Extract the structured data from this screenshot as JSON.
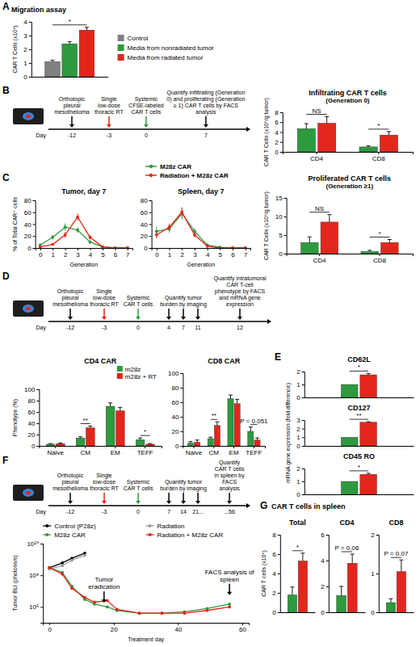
{
  "panel_letters": [
    "A",
    "B",
    "C",
    "D",
    "E",
    "F",
    "G"
  ],
  "legend_key": {
    "items": [
      {
        "name": "M28z CAR",
        "color": "#2e9a3e"
      },
      {
        "name": "Radiation + M28z CAR",
        "color": "#e3261c"
      }
    ]
  },
  "group_title": "CAR T cells in spleen",
  "timelines": [
    {
      "day_label": "Day",
      "events": [
        {
          "days": [
            "-12"
          ],
          "label": "Orthotopic pleural mesothelioma",
          "color": "#000000"
        },
        {
          "days": [
            "-3"
          ],
          "label": "Single low-dose thoracic RT",
          "color": "#e3261c"
        },
        {
          "days": [
            "0"
          ],
          "label": "Systemic CFSE-labeled CAR T cells",
          "color": "#2e9a3e"
        },
        {
          "days": [
            "7"
          ],
          "label": "Quantify infiltrating (Generation 0) and proliferating (Generation ≥ 1) CAR T cells by FACS analysis",
          "color": "#000000"
        }
      ]
    },
    {
      "day_label": "Day",
      "events": [
        {
          "days": [
            "-12"
          ],
          "label": "Orthotopic pleural mesothelioma",
          "color": "#000000"
        },
        {
          "days": [
            "-3"
          ],
          "label": "Single low-dose thoracic RT",
          "color": "#e3261c"
        },
        {
          "days": [
            "0"
          ],
          "label": "Systemic CAR T cells",
          "color": "#2e9a3e"
        },
        {
          "days": [
            "4",
            "7",
            "11"
          ],
          "label": "Quantify tumor burden by imaging",
          "color": "#000000"
        },
        {
          "days": [
            "12"
          ],
          "label": "Quantify intratumoral CAR T-cell phenotype by FACS and mRNA gene expression",
          "color": "#000000"
        }
      ]
    },
    {
      "day_label": "Day",
      "events": [
        {
          "days": [
            "-12"
          ],
          "label": "Orthotopic pleural mesothelioma",
          "color": "#000000"
        },
        {
          "days": [
            "-3"
          ],
          "label": "Single low-dose thoracic RT",
          "color": "#e3261c"
        },
        {
          "days": [
            "0"
          ],
          "label": "Systemic CAR T cells",
          "color": "#2e9a3e"
        },
        {
          "days": [
            "7",
            "14",
            "21..."
          ],
          "label": "Quantify tumor burden by imaging",
          "color": "#000000"
        },
        {
          "days": [
            "...56"
          ],
          "label": "Quantify CAR T cells in spleen by FACS analysis",
          "color": "#000000"
        }
      ]
    }
  ],
  "chart_data": [
    {
      "type": "bar",
      "title": "Migration assay",
      "ylabel": "CAR T Cells (x10⁴)",
      "categories": [
        null
      ],
      "ylim": [
        0,
        4
      ],
      "yticks": [
        0,
        1,
        2,
        3,
        4
      ],
      "legend": "right",
      "series": [
        {
          "name": "Control",
          "color": "#808080",
          "values": [
            1.1
          ],
          "errors": [
            0.1
          ]
        },
        {
          "name": "Media from nonradiated tumor",
          "color": "#2e9a3e",
          "values": [
            2.4
          ],
          "errors": [
            0.15
          ]
        },
        {
          "name": "Media from radiated tumor",
          "color": "#e3261c",
          "values": [
            3.4
          ],
          "errors": [
            0.2
          ]
        }
      ],
      "annotations": [
        {
          "text": "*",
          "category": 0
        }
      ]
    },
    {
      "type": "bar",
      "title": "Infiltrating CAR T cells",
      "subtitle": "(Generation 0)",
      "ylabel": "CAR T Cells (x10⁵/g tumor)",
      "categories": [
        "CD4",
        "CD8"
      ],
      "ylim": [
        0,
        8
      ],
      "yticks": [
        0,
        2,
        4,
        6,
        8
      ],
      "series": [
        {
          "color": "#2e9a3e",
          "values": [
            4.7,
            1.0
          ],
          "errors": [
            1.0,
            0.2
          ]
        },
        {
          "color": "#e3261c",
          "values": [
            5.8,
            3.4
          ],
          "errors": [
            1.3,
            0.7
          ]
        }
      ],
      "annotations": [
        {
          "text": "NS",
          "category": 0
        },
        {
          "text": "*",
          "category": 1
        }
      ]
    },
    {
      "type": "line",
      "title": "Tumor, day 7",
      "xlabel": "Generation",
      "ylabel": "% of Total CAR⁺ cells",
      "x": [
        0,
        1,
        2,
        3,
        4,
        5,
        6,
        7
      ],
      "xlim": [
        -0.4,
        7.4
      ],
      "xticks": [
        0,
        1,
        2,
        3,
        4,
        5,
        6,
        7
      ],
      "ylim": [
        0,
        80
      ],
      "yticks": [
        0,
        20,
        40,
        60,
        80
      ],
      "marker": "circle",
      "series": [
        {
          "color": "#2e9a3e",
          "values": [
            5,
            18,
            35,
            30,
            10,
            2,
            0,
            0
          ],
          "errors": [
            2,
            4,
            6,
            5,
            3,
            1,
            0,
            0
          ]
        },
        {
          "color": "#e3261c",
          "values": [
            2,
            6,
            22,
            52,
            18,
            2,
            0,
            0
          ],
          "errors": [
            1,
            2,
            5,
            6,
            4,
            1,
            0,
            0
          ]
        }
      ]
    },
    {
      "type": "line",
      "title": "Spleen, day 7",
      "xlabel": "Generation",
      "x": [
        0,
        1,
        2,
        3,
        4,
        5,
        6,
        7
      ],
      "xlim": [
        -0.4,
        7.4
      ],
      "xticks": [
        0,
        1,
        2,
        3,
        4,
        5,
        6,
        7
      ],
      "ylim": [
        0,
        80
      ],
      "yticks": [
        0,
        20,
        40,
        60,
        80
      ],
      "marker": "circle",
      "series": [
        {
          "color": "#2e9a3e",
          "values": [
            28,
            32,
            58,
            28,
            5,
            1,
            0,
            0
          ],
          "errors": [
            8,
            6,
            10,
            5,
            2,
            1,
            0,
            0
          ]
        },
        {
          "color": "#e3261c",
          "values": [
            22,
            35,
            60,
            22,
            3,
            0,
            0,
            0
          ],
          "errors": [
            6,
            6,
            8,
            4,
            1,
            0,
            0,
            0
          ]
        }
      ]
    },
    {
      "type": "bar",
      "title": "Proliferated CAR T cells",
      "subtitle": "(Generation ≥1)",
      "ylabel": "CAR T Cells (x10⁵/g tumor)",
      "categories": [
        "CD4",
        "CD8"
      ],
      "ylim": [
        0,
        15
      ],
      "yticks": [
        0,
        5,
        10,
        15
      ],
      "series": [
        {
          "color": "#2e9a3e",
          "values": [
            3,
            0.6
          ],
          "errors": [
            1.5,
            0.3
          ]
        },
        {
          "color": "#e3261c",
          "values": [
            8.5,
            3
          ],
          "errors": [
            2,
            0.8
          ]
        }
      ],
      "annotations": [
        {
          "text": "NS",
          "category": 0
        },
        {
          "text": "*",
          "category": 1
        }
      ]
    },
    {
      "type": "bar",
      "title": "CD4 CAR",
      "ylabel": "Phenotype (%)",
      "categories": [
        "Naive",
        "CM",
        "EM",
        "TEFF"
      ],
      "ylim": [
        0,
        100
      ],
      "yticks": [
        0,
        20,
        40,
        60,
        80,
        100
      ],
      "legend": "top-right",
      "series": [
        {
          "name": "m28z",
          "color": "#2e9a3e",
          "values": [
            3,
            14,
            70,
            11
          ],
          "errors": [
            1,
            2,
            6,
            3
          ]
        },
        {
          "name": "m28z + RT",
          "color": "#e3261c",
          "values": [
            4,
            32,
            62,
            3
          ],
          "errors": [
            1,
            3,
            6,
            1
          ]
        }
      ],
      "annotations": [
        {
          "text": "**",
          "category": 1
        },
        {
          "text": "*",
          "category": 3
        }
      ]
    },
    {
      "type": "bar",
      "title": "CD8 CAR",
      "categories": [
        "Naive",
        "CM",
        "EM",
        "TEFF"
      ],
      "ylim": [
        0,
        100
      ],
      "yticks": [
        0,
        20,
        40,
        60,
        80,
        100
      ],
      "series": [
        {
          "color": "#2e9a3e",
          "values": [
            4,
            10,
            65,
            20
          ],
          "errors": [
            2,
            2,
            5,
            6
          ]
        },
        {
          "color": "#e3261c",
          "values": [
            5,
            28,
            58,
            8
          ],
          "errors": [
            3,
            5,
            6,
            3
          ]
        }
      ],
      "annotations": [
        {
          "text": "**",
          "category": 1
        },
        {
          "text": "P = 0.051",
          "category": 3
        }
      ]
    },
    {
      "type": "bar",
      "title": "CD62L",
      "categories": [
        null
      ],
      "ylim": [
        0,
        2
      ],
      "yticks": [
        0,
        1,
        2
      ],
      "series": [
        {
          "color": "#2e9a3e",
          "values": [
            1
          ]
        },
        {
          "color": "#e3261c",
          "values": [
            1.75
          ],
          "errors": [
            0.1
          ]
        }
      ],
      "annotations": [
        {
          "text": "*",
          "category": 0
        }
      ]
    },
    {
      "type": "bar",
      "title": "CD127",
      "ylabel": "mRNA gene expression (fold difference)",
      "categories": [
        null
      ],
      "ylim": [
        0,
        3
      ],
      "yticks": [
        0,
        1,
        2,
        3
      ],
      "series": [
        {
          "color": "#2e9a3e",
          "values": [
            1
          ]
        },
        {
          "color": "#e3261c",
          "values": [
            2.75
          ],
          "errors": [
            0.05
          ]
        }
      ],
      "annotations": [
        {
          "text": "**",
          "category": 0
        }
      ]
    },
    {
      "type": "bar",
      "title": "CD45 RO",
      "categories": [
        null
      ],
      "ylim": [
        0,
        2
      ],
      "yticks": [
        0,
        1,
        2
      ],
      "series": [
        {
          "color": "#2e9a3e",
          "values": [
            1
          ]
        },
        {
          "color": "#e3261c",
          "values": [
            1.55
          ],
          "errors": [
            0.08
          ]
        }
      ],
      "annotations": [
        {
          "text": "*",
          "category": 0
        }
      ]
    },
    {
      "type": "line",
      "log": "y",
      "xlabel": "Treatment day",
      "ylabel": "Tumor BLI (photons/s)",
      "x": [
        0,
        4,
        7,
        11,
        14,
        18,
        21,
        28,
        35,
        42,
        49,
        56
      ],
      "xlim": [
        -2,
        62
      ],
      "xticks": [
        0,
        20,
        40,
        60
      ],
      "ylim": [
        100000,
        10000000000
      ],
      "yticks": [
        {
          "value": 1000000,
          "label": "10⁶"
        },
        {
          "value": 100000000,
          "label": "10⁸"
        },
        {
          "value": 10000000000,
          "label": "10¹⁰"
        }
      ],
      "legend": "top",
      "marker": "circle",
      "series": [
        {
          "name": "Control (P28z)",
          "color": "#000000",
          "values": [
            300000000,
            600000000,
            1200000000,
            2500000000,
            null,
            null,
            null,
            null,
            null,
            null,
            null,
            null
          ]
        },
        {
          "name": "Radiation",
          "color": "#9e9e9e",
          "values": [
            250000000,
            400000000,
            900000000,
            1800000000,
            null,
            null,
            null,
            null,
            null,
            null,
            null,
            null
          ]
        },
        {
          "name": "M28z CAR",
          "color": "#2e9a3e",
          "values": [
            300000000,
            150000000,
            20000000,
            3000000,
            1500000,
            1000000,
            600000,
            400000,
            400000,
            500000,
            800000,
            1500000
          ]
        },
        {
          "name": "Radiation + M28z CAR",
          "color": "#e3261c",
          "values": [
            300000000,
            120000000,
            15000000,
            4000000,
            2000000,
            2500000,
            700000,
            400000,
            400000,
            400000,
            600000,
            1000000
          ]
        }
      ],
      "annotations": [
        {
          "text": "Tumor eradication",
          "x": 17,
          "y": 100000000
        },
        {
          "text": "FACS analysis of spleen",
          "x": 56,
          "y": 300000000
        }
      ]
    },
    {
      "type": "bar",
      "title": "Total",
      "ylabel": "CAR T cells (x10⁶)",
      "categories": [
        null
      ],
      "ylim": [
        0,
        8
      ],
      "yticks": [
        0,
        2,
        4,
        6,
        8
      ],
      "series": [
        {
          "color": "#2e9a3e",
          "values": [
            1.8
          ],
          "errors": [
            0.8
          ]
        },
        {
          "color": "#e3261c",
          "values": [
            5.3
          ],
          "errors": [
            0.8
          ]
        }
      ],
      "annotations": [
        {
          "text": "*",
          "category": 0
        }
      ]
    },
    {
      "type": "bar",
      "title": "CD4",
      "categories": [
        null
      ],
      "ylim": [
        0,
        6
      ],
      "yticks": [
        0,
        2,
        4,
        6
      ],
      "series": [
        {
          "color": "#2e9a3e",
          "values": [
            1.3
          ],
          "errors": [
            0.7
          ]
        },
        {
          "color": "#e3261c",
          "values": [
            3.8
          ],
          "errors": [
            0.7
          ]
        }
      ],
      "annotations": [
        {
          "text": "P = 0.06",
          "category": 0
        }
      ]
    },
    {
      "type": "bar",
      "title": "CD8",
      "categories": [
        null
      ],
      "ylim": [
        0,
        2
      ],
      "yticks": [
        0,
        1,
        2
      ],
      "series": [
        {
          "color": "#2e9a3e",
          "values": [
            0.25
          ],
          "errors": [
            0.1
          ]
        },
        {
          "color": "#e3261c",
          "values": [
            1.05
          ],
          "errors": [
            0.3
          ]
        }
      ],
      "annotations": [
        {
          "text": "P = 0.07",
          "category": 0
        }
      ]
    }
  ]
}
